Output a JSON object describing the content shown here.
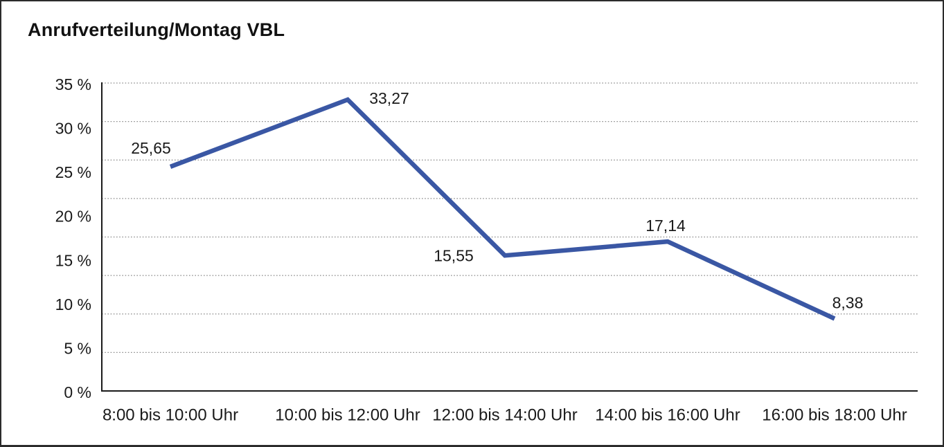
{
  "chart_data": {
    "type": "line",
    "title": "Anrufverteilung/Montag VBL",
    "categories": [
      "8:00 bis 10:00 Uhr",
      "10:00 bis 12:00 Uhr",
      "12:00 bis 14:00 Uhr",
      "14:00 bis 16:00 Uhr",
      "16:00 bis 18:00 Uhr"
    ],
    "values": [
      25.65,
      33.27,
      15.55,
      17.14,
      8.38
    ],
    "value_labels": [
      "25,65",
      "33,27",
      "15,55",
      "17,14",
      "8,38"
    ],
    "y_ticks": [
      "35 %",
      "30 %",
      "25 %",
      "20 %",
      "15 %",
      "10 %",
      "5 %",
      "0 %"
    ],
    "ylim": [
      0,
      35
    ],
    "y_tick_step": 5,
    "xlabel": "",
    "ylabel": "",
    "legend": "none",
    "grid": "horizontal-dotted",
    "line_color": "#3A57A4",
    "gridline_color": "#8a8a8a",
    "axis_color": "#1a1a1a",
    "text_color": "#1a1a1a"
  }
}
